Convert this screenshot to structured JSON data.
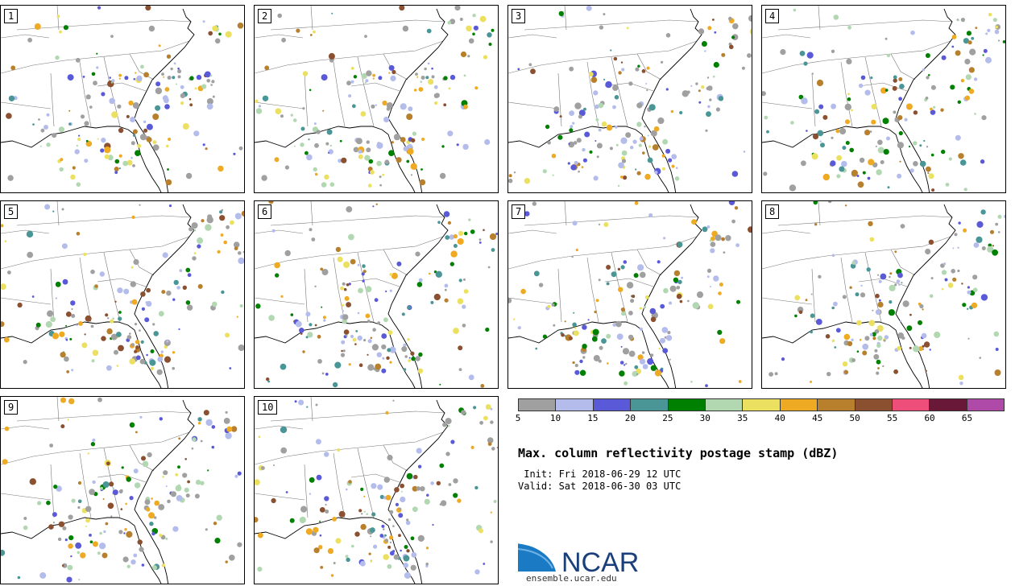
{
  "title": "Max. column reflectivity postage stamp (dBZ)",
  "init": " Init: Fri 2018-06-29 12 UTC",
  "valid": "Valid: Sat 2018-06-30 03 UTC",
  "panels": [
    "1",
    "2",
    "3",
    "4",
    "5",
    "6",
    "7",
    "8",
    "9",
    "10"
  ],
  "colorbar": {
    "ticks": [
      "5",
      "10",
      "15",
      "20",
      "25",
      "30",
      "35",
      "40",
      "45",
      "50",
      "55",
      "60",
      "65"
    ],
    "colors": [
      "#a0a0a0",
      "#b4bcec",
      "#5a5ad8",
      "#4a9696",
      "#008000",
      "#b2d8b2",
      "#ece060",
      "#eeaa22",
      "#b8802c",
      "#8a5030",
      "#ee4e7a",
      "#6a1838",
      "#b04aa8"
    ]
  },
  "logo": {
    "name": "NCAR",
    "url": "ensemble.ucar.edu"
  }
}
